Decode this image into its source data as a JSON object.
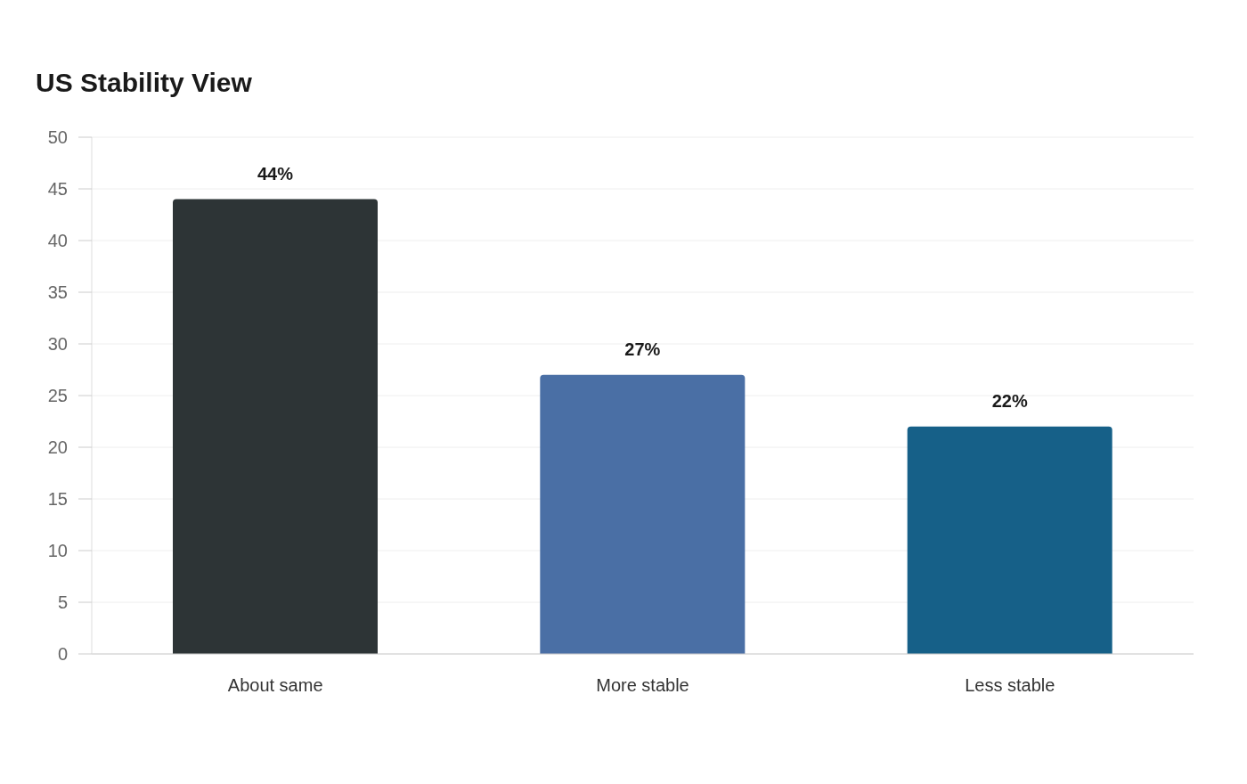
{
  "chart_data": {
    "type": "bar",
    "title": "US Stability View",
    "categories": [
      "About same",
      "More stable",
      "Less stable"
    ],
    "values": [
      44,
      27,
      22
    ],
    "colors": [
      "#2d3436",
      "#4a6fa5",
      "#166088"
    ],
    "value_labels": [
      "44%",
      "27%",
      "22%"
    ],
    "ylim": [
      0,
      50
    ],
    "yticks": [
      0,
      5,
      10,
      15,
      20,
      25,
      30,
      35,
      40,
      45,
      50
    ],
    "grid": "y"
  }
}
